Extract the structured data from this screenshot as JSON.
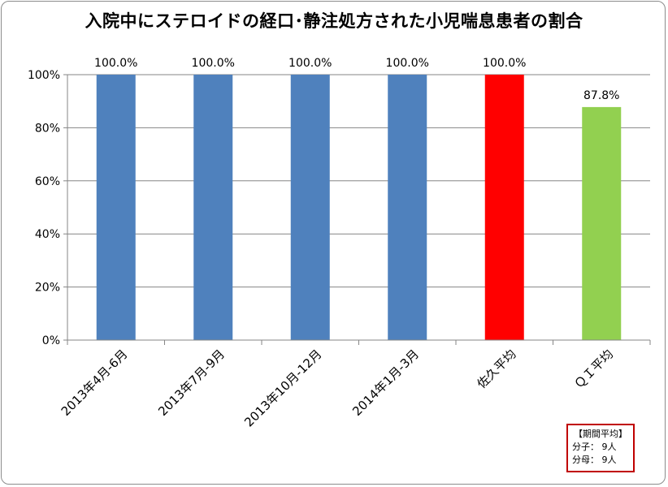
{
  "chart_data": {
    "type": "bar",
    "title": "入院中にステロイドの経口･静注処方された小児喘息患者の割合",
    "categories": [
      "2013年4月-6月",
      "2013年7月-9月",
      "2013年10月-12月",
      "2014年1月-3月",
      "佐久平均",
      "ＱＩ平均"
    ],
    "values": [
      100.0,
      100.0,
      100.0,
      100.0,
      100.0,
      87.8
    ],
    "data_labels": [
      "100.0%",
      "100.0%",
      "100.0%",
      "100.0%",
      "100.0%",
      "87.8%"
    ],
    "colors": [
      "#4f81bd",
      "#4f81bd",
      "#4f81bd",
      "#4f81bd",
      "#ff0000",
      "#92d050"
    ],
    "ylim": [
      0,
      100
    ],
    "yticks": [
      0,
      20,
      40,
      60,
      80,
      100
    ],
    "ytick_labels": [
      "0%",
      "20%",
      "40%",
      "60%",
      "80%",
      "100%"
    ],
    "grid": true,
    "xlabel": "",
    "ylabel": ""
  },
  "info_box": {
    "header": "【期間平均】",
    "numerator_label": "分子：",
    "numerator_value": "9人",
    "denominator_label": "分母：",
    "denominator_value": "9人"
  }
}
